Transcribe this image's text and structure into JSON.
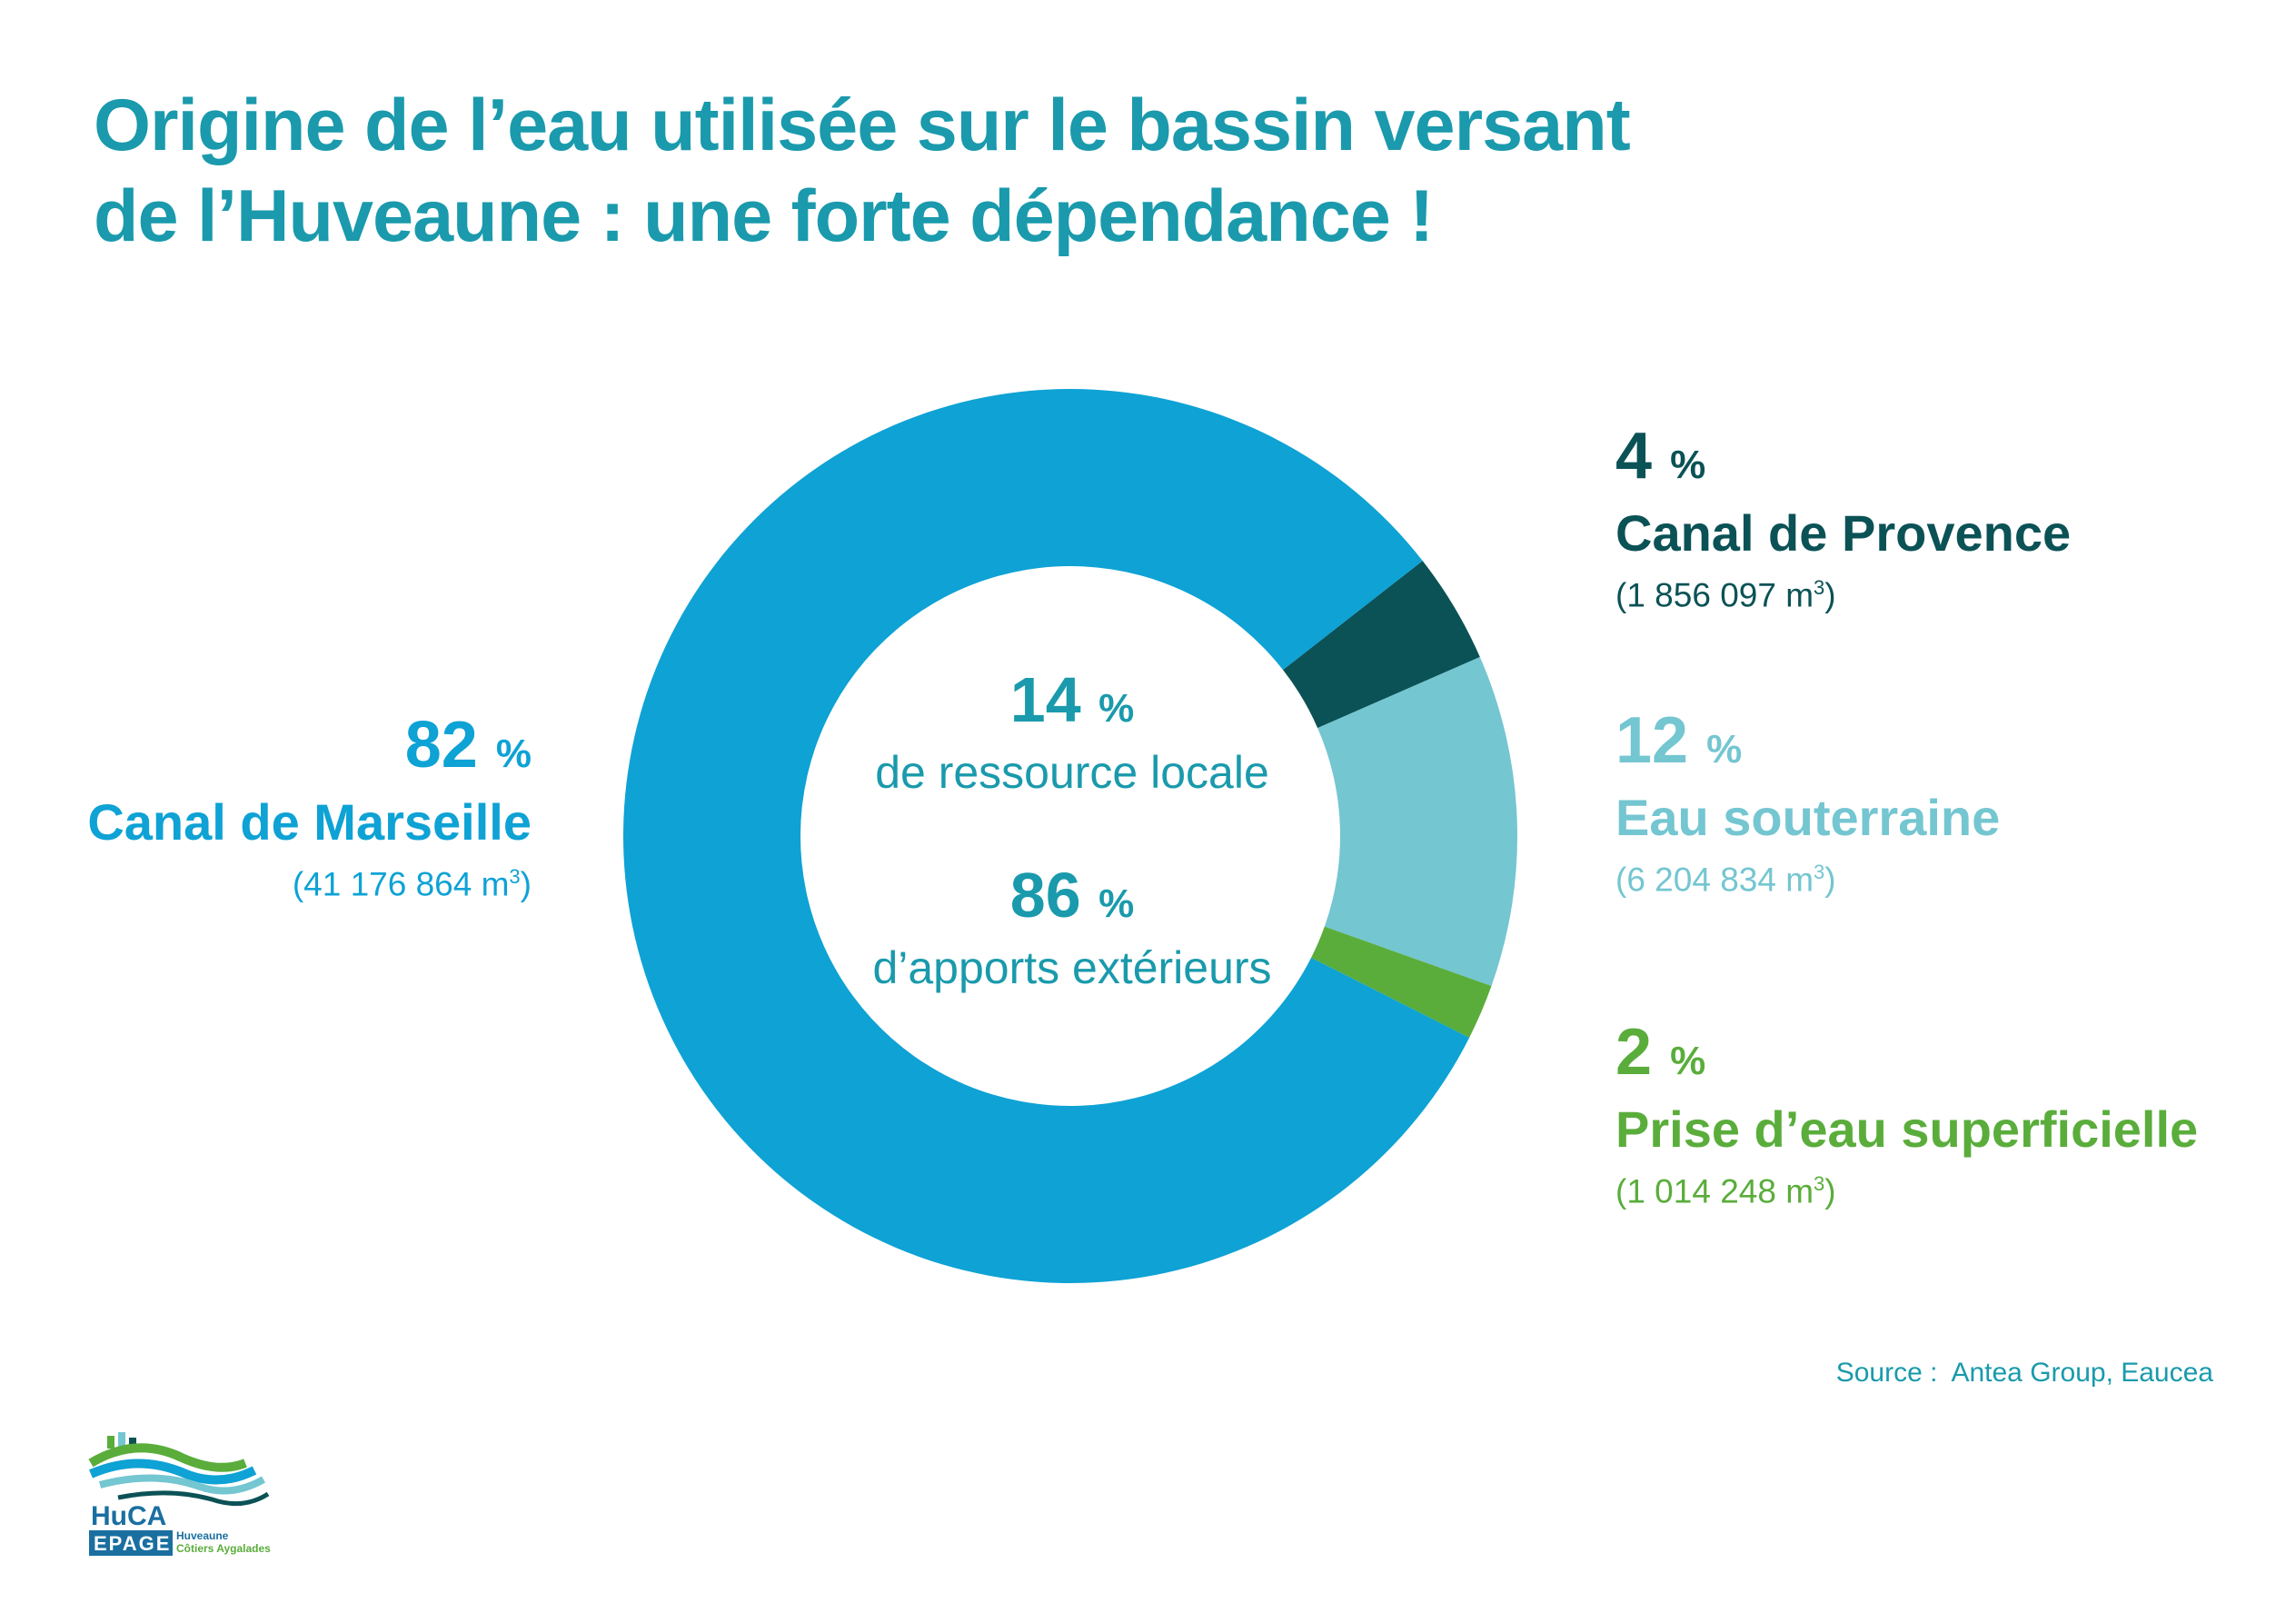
{
  "title_lines": [
    "Origine de l’eau utilisée sur le bassin versant",
    "de l’Huveaune : une forte dépendance !"
  ],
  "center": {
    "local_value": "14",
    "local_unit": "%",
    "local_label": "de ressource locale",
    "ext_value": "86",
    "ext_unit": "%",
    "ext_label": "d’apports extérieurs"
  },
  "source": "Source :  Antea Group, Eaucea",
  "logo": {
    "text_top": "HuCA",
    "text_bottom": "EPAGE",
    "line1": "Huveaune",
    "line2": "Côtiers Aygalades"
  },
  "colors": {
    "title": "#1a9aac",
    "canal_marseille": "#0ea2d5",
    "canal_provence": "#0b5256",
    "eau_souterraine": "#74c6d1",
    "prise_eau": "#5aad3b"
  },
  "chart_data": {
    "type": "pie",
    "donut": true,
    "title": "Origine de l’eau utilisée sur le bassin versant de l’Huveaune : une forte dépendance !",
    "unit": "%",
    "volume_unit": "m³",
    "series": [
      {
        "name": "Canal de Marseille",
        "pct_label": "82",
        "value": 82,
        "volume": "(41 176 864 m",
        "color": "#0ea2d5"
      },
      {
        "name": "Canal de Provence",
        "pct_label": "4",
        "value": 4,
        "volume": "(1 856 097 m",
        "color": "#0b5256"
      },
      {
        "name": "Eau souterraine",
        "pct_label": "12",
        "value": 12,
        "volume": "(6 204 834 m",
        "color": "#74c6d1"
      },
      {
        "name": "Prise d’eau superficielle",
        "pct_label": "2",
        "value": 2,
        "volume": "(1 014 248 m",
        "color": "#5aad3b"
      }
    ]
  }
}
